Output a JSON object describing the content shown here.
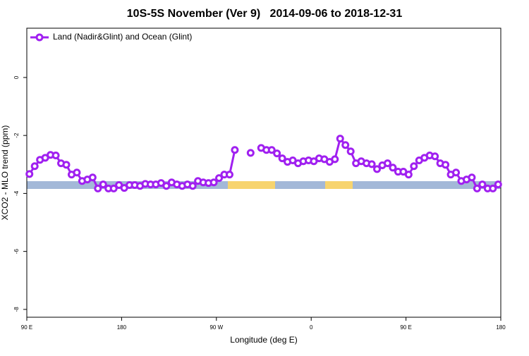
{
  "chart_data": {
    "type": "line",
    "title": "10S-5S November (Ver 9)   2014-09-06 to 2018-12-31",
    "x_label": "Longitude (deg E)",
    "y_label": "XCO2 - MLO trend (ppm)",
    "xlim": [
      90,
      540
    ],
    "xticks": [
      {
        "value": 90,
        "label": "90 E"
      },
      {
        "value": 180,
        "label": "180"
      },
      {
        "value": 270,
        "label": "90 W"
      },
      {
        "value": 360,
        "label": "0"
      },
      {
        "value": 450,
        "label": "90 E"
      },
      {
        "value": 540,
        "label": "180"
      }
    ],
    "ylim": [
      -8.27,
      1.7
    ],
    "yticks": [
      0,
      -2,
      -4,
      -6,
      -8
    ],
    "legend": "top-left",
    "x": [
      92.5,
      97.5,
      102.5,
      107.5,
      112.5,
      117.5,
      122.5,
      127.5,
      132.5,
      137.5,
      142.5,
      147.5,
      152.5,
      157.5,
      162.5,
      167.5,
      172.5,
      177.5,
      182.5,
      187.5,
      192.5,
      197.5,
      202.5,
      207.5,
      212.5,
      217.5,
      222.5,
      227.5,
      232.5,
      237.5,
      242.5,
      247.5,
      252.5,
      257.5,
      262.5,
      267.5,
      272.5,
      277.5,
      282.5,
      287.5,
      292.5,
      297.5,
      302.5,
      307.5,
      312.5,
      317.5,
      322.5,
      327.5,
      332.5,
      337.5,
      342.5,
      347.5,
      352.5,
      357.5,
      362.5,
      367.5,
      372.5,
      377.5,
      382.5,
      387.5,
      392.5,
      397.5,
      402.5,
      407.5,
      412.5,
      417.5,
      422.5,
      427.5,
      432.5,
      437.5,
      442.5,
      447.5,
      452.5,
      457.5,
      462.5,
      467.5,
      472.5,
      477.5,
      482.5,
      487.5,
      492.5,
      497.5,
      502.5,
      507.5,
      512.5,
      517.5,
      522.5,
      527.5,
      532.5,
      537.5
    ],
    "series": [
      {
        "name": "Land (Nadir&Glint) and Ocean (Glint)",
        "color": "#a020f0",
        "values": [
          -3.33,
          -3.06,
          -2.84,
          -2.77,
          -2.67,
          -2.69,
          -2.96,
          -3.01,
          -3.35,
          -3.28,
          -3.57,
          -3.52,
          -3.45,
          -3.83,
          -3.69,
          -3.83,
          -3.83,
          -3.71,
          -3.81,
          -3.71,
          -3.71,
          -3.74,
          -3.67,
          -3.69,
          -3.69,
          -3.64,
          -3.74,
          -3.62,
          -3.69,
          -3.74,
          -3.69,
          -3.74,
          -3.57,
          -3.62,
          -3.64,
          -3.62,
          -3.47,
          -3.35,
          -3.35,
          -2.5,
          null,
          null,
          -2.6,
          null,
          -2.43,
          -2.5,
          -2.5,
          -2.62,
          -2.79,
          -2.91,
          -2.86,
          -2.96,
          -2.89,
          -2.86,
          -2.89,
          -2.79,
          -2.82,
          -2.91,
          -2.82,
          -2.11,
          -2.33,
          -2.55,
          -2.96,
          -2.89,
          -2.96,
          -2.99,
          -3.16,
          -3.03,
          -2.96,
          -3.11,
          -3.25,
          -3.25,
          -3.35,
          -3.06,
          -2.86,
          -2.77,
          -2.69,
          -2.72,
          -2.96,
          -3.01,
          -3.35,
          -3.28,
          -3.57,
          -3.52,
          -3.45,
          -3.83,
          -3.69,
          -3.83,
          -3.83,
          -3.69
        ]
      }
    ]
  }
}
